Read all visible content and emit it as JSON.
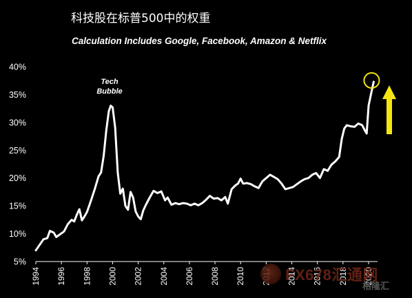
{
  "title": "科技股在标普500中的权重",
  "subtitle": "Calculation Includes Google, Facebook, Amazon & Netflix",
  "watermark": {
    "text": "FX678汇通网",
    "brand": "格隆汇"
  },
  "chart_data": {
    "type": "line",
    "title": "科技股在标普500中的权重",
    "subtitle": "Calculation Includes Google, Facebook, Amazon & Netflix",
    "xlabel": "",
    "ylabel": "",
    "xlim": [
      1994,
      2020.7
    ],
    "ylim": [
      5,
      40
    ],
    "xticks": [
      1994,
      1996,
      1998,
      2000,
      2002,
      2004,
      2006,
      2008,
      2010,
      2012,
      2014,
      2016,
      2018,
      2020
    ],
    "yticks": [
      5,
      10,
      15,
      20,
      25,
      30,
      35,
      40
    ],
    "ytick_labels": [
      "5%",
      "10%",
      "15%",
      "20%",
      "25%",
      "30%",
      "35%",
      "40%"
    ],
    "grid": false,
    "legend": "none",
    "line_color": "#ffffff",
    "annotations": [
      {
        "text": "Tech Bubble",
        "x": 1999.9,
        "y": 33
      }
    ],
    "highlight": {
      "type": "circle",
      "x": 2020.4,
      "y": 37.3,
      "color": "#f5e611"
    },
    "arrow": {
      "direction": "up",
      "color": "#f5e611"
    },
    "series": [
      {
        "x": [
          1994.0,
          1994.3,
          1994.6,
          1994.9,
          1995.1,
          1995.4,
          1995.6,
          1995.9,
          1996.2,
          1996.5,
          1996.8,
          1997.0,
          1997.2,
          1997.4,
          1997.6,
          1997.8,
          1998.0,
          1998.3,
          1998.6,
          1998.9,
          1999.1,
          1999.3,
          1999.5,
          1999.7,
          1999.85,
          2000.0,
          2000.2,
          2000.4,
          2000.6,
          2000.8,
          2001.0,
          2001.2,
          2001.4,
          2001.6,
          2001.8,
          2002.0,
          2002.2,
          2002.4,
          2002.6,
          2002.9,
          2003.2,
          2003.5,
          2003.8,
          2004.1,
          2004.3,
          2004.6,
          2004.9,
          2005.2,
          2005.5,
          2005.8,
          2006.1,
          2006.4,
          2006.7,
          2007.0,
          2007.3,
          2007.6,
          2007.9,
          2008.2,
          2008.5,
          2008.8,
          2009.0,
          2009.3,
          2009.6,
          2009.8,
          2010.0,
          2010.2,
          2010.5,
          2010.8,
          2011.1,
          2011.4,
          2011.7,
          2012.0,
          2012.3,
          2012.6,
          2012.9,
          2013.2,
          2013.5,
          2013.8,
          2014.1,
          2014.4,
          2014.7,
          2015.0,
          2015.3,
          2015.6,
          2015.9,
          2016.2,
          2016.5,
          2016.8,
          2017.1,
          2017.4,
          2017.7,
          2017.9,
          2018.1,
          2018.3,
          2018.6,
          2018.9,
          2019.2,
          2019.5,
          2019.7,
          2019.85,
          2020.0,
          2020.2,
          2020.4
        ],
        "values": [
          7.0,
          8.0,
          9.0,
          9.2,
          10.5,
          10.2,
          9.4,
          9.9,
          10.4,
          11.7,
          12.5,
          12.2,
          13.4,
          14.4,
          12.4,
          13.1,
          13.9,
          15.9,
          18.0,
          20.3,
          21.0,
          24.0,
          28.5,
          32.0,
          33.0,
          32.7,
          29.0,
          21.0,
          17.2,
          18.1,
          15.0,
          14.3,
          17.5,
          16.5,
          14.0,
          13.1,
          12.6,
          14.2,
          15.2,
          16.5,
          17.7,
          17.3,
          17.6,
          16.0,
          16.5,
          15.2,
          15.5,
          15.3,
          15.5,
          15.4,
          15.1,
          15.4,
          15.1,
          15.5,
          16.1,
          16.8,
          16.3,
          16.4,
          16.0,
          16.6,
          15.4,
          18.0,
          18.7,
          19.0,
          19.9,
          19.0,
          19.1,
          18.9,
          18.5,
          18.2,
          19.4,
          20.0,
          20.6,
          20.2,
          19.8,
          19.0,
          18.0,
          18.2,
          18.4,
          18.9,
          19.4,
          19.8,
          20.0,
          20.6,
          20.9,
          20.0,
          21.6,
          21.3,
          22.4,
          23.0,
          23.8,
          27.0,
          28.9,
          29.5,
          29.3,
          29.2,
          29.8,
          29.5,
          28.6,
          28.0,
          33.0,
          35.2,
          37.3
        ]
      }
    ]
  }
}
